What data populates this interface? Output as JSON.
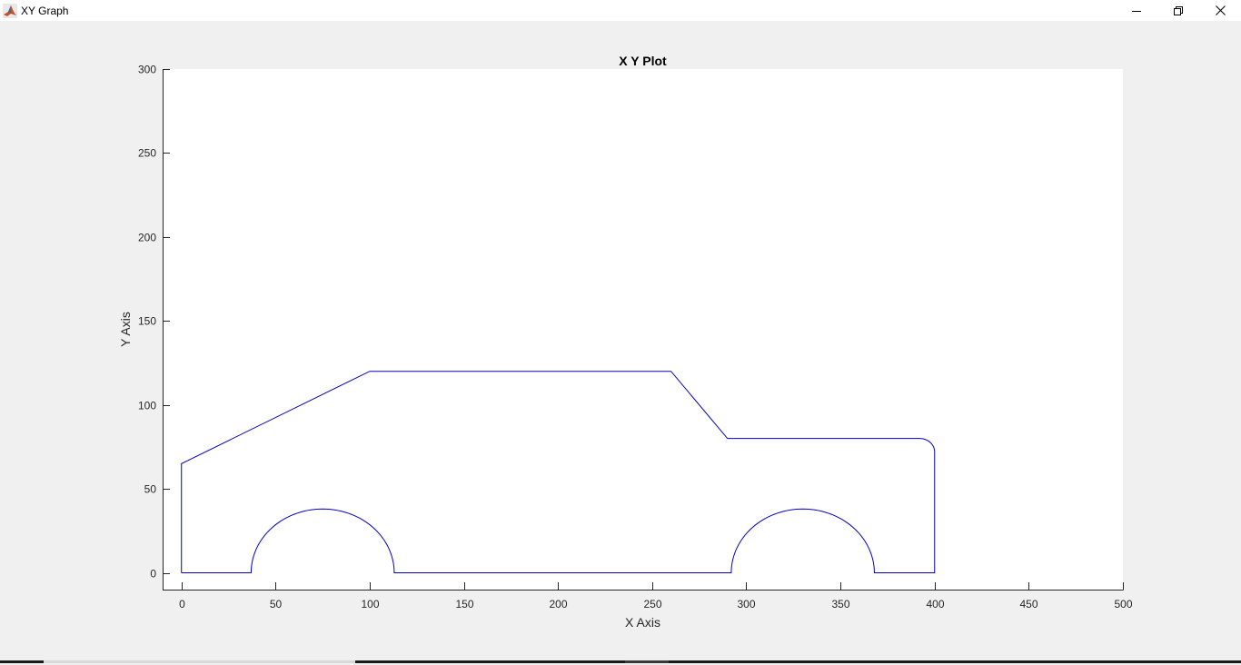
{
  "window": {
    "title": "XY Graph",
    "icon": "matlab-icon",
    "controls": [
      "minimize-icon",
      "restore-icon",
      "close-icon"
    ]
  },
  "chart_data": {
    "type": "line",
    "title": "X Y Plot",
    "xlabel": "X Axis",
    "ylabel": "Y Axis",
    "xlim": [
      -10,
      500
    ],
    "ylim": [
      -10,
      300
    ],
    "xticks": [
      0,
      50,
      100,
      150,
      200,
      250,
      300,
      350,
      400,
      450,
      500
    ],
    "yticks": [
      0,
      50,
      100,
      150,
      200,
      250,
      300
    ],
    "grid": false,
    "line_color": "#0000cc",
    "series": [
      {
        "values_note": "",
        "segments": [
          {
            "kind": "line",
            "points": [
              [
                0,
                0
              ],
              [
                0,
                65
              ],
              [
                100,
                120
              ],
              [
                260,
                120
              ],
              [
                290,
                80
              ],
              [
                392,
                80
              ]
            ]
          },
          {
            "kind": "corner",
            "center": [
              392,
              72
            ],
            "radius": 8,
            "from_deg": 90,
            "to_deg": 0
          },
          {
            "kind": "line",
            "points": [
              [
                400,
                72
              ],
              [
                400,
                0
              ],
              [
                368,
                0
              ]
            ]
          },
          {
            "kind": "semicircle",
            "center": [
              330,
              0
            ],
            "radius": 38,
            "from_deg": 0,
            "to_deg": 180
          },
          {
            "kind": "line",
            "points": [
              [
                292,
                0
              ],
              [
                113,
                0
              ]
            ]
          },
          {
            "kind": "semicircle",
            "center": [
              75,
              0
            ],
            "radius": 38,
            "from_deg": 0,
            "to_deg": 180
          },
          {
            "kind": "line",
            "points": [
              [
                37,
                0
              ],
              [
                0,
                0
              ]
            ]
          }
        ]
      }
    ]
  }
}
